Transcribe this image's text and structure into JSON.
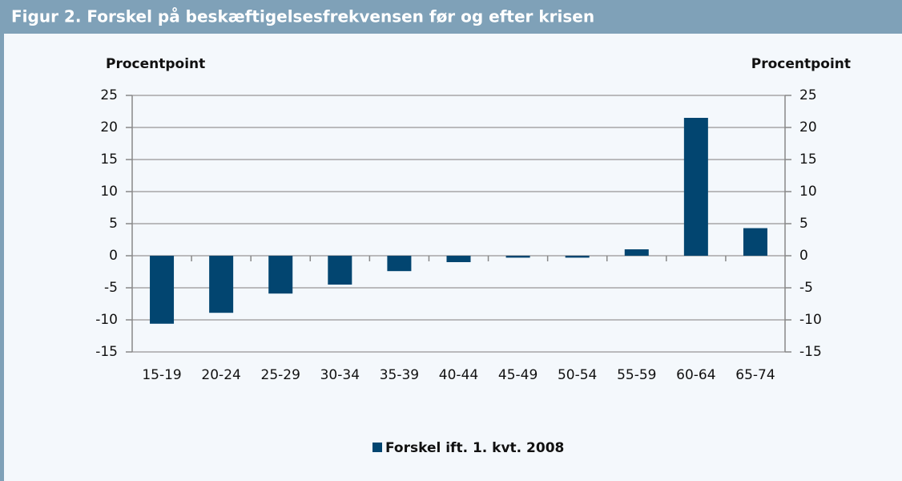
{
  "chart_data": {
    "type": "bar",
    "title": "Figur 2. Forskel på beskæftigelsesfrekvensen før og efter krisen",
    "y_label": "Procentpoint",
    "y2_label": "Procentpoint",
    "categories": [
      "15-19",
      "20-24",
      "25-29",
      "30-34",
      "35-39",
      "40-44",
      "45-49",
      "50-54",
      "55-59",
      "60-64",
      "65-74"
    ],
    "series": [
      {
        "name": "Forskel ift. 1. kvt. 2008",
        "color": "#024570",
        "values": [
          -10.6,
          -8.9,
          -5.9,
          -4.5,
          -2.4,
          -1.0,
          -0.3,
          -0.3,
          1.0,
          21.5,
          4.3
        ]
      }
    ],
    "ylim": [
      -15,
      25
    ],
    "yticks": [
      -15,
      -10,
      -5,
      0,
      5,
      10,
      15,
      20,
      25
    ],
    "y2lim": [
      -15,
      25
    ],
    "y2ticks": [
      -15,
      -10,
      -5,
      0,
      5,
      10,
      15,
      20,
      25
    ],
    "grid": true,
    "legend": "bottom"
  }
}
